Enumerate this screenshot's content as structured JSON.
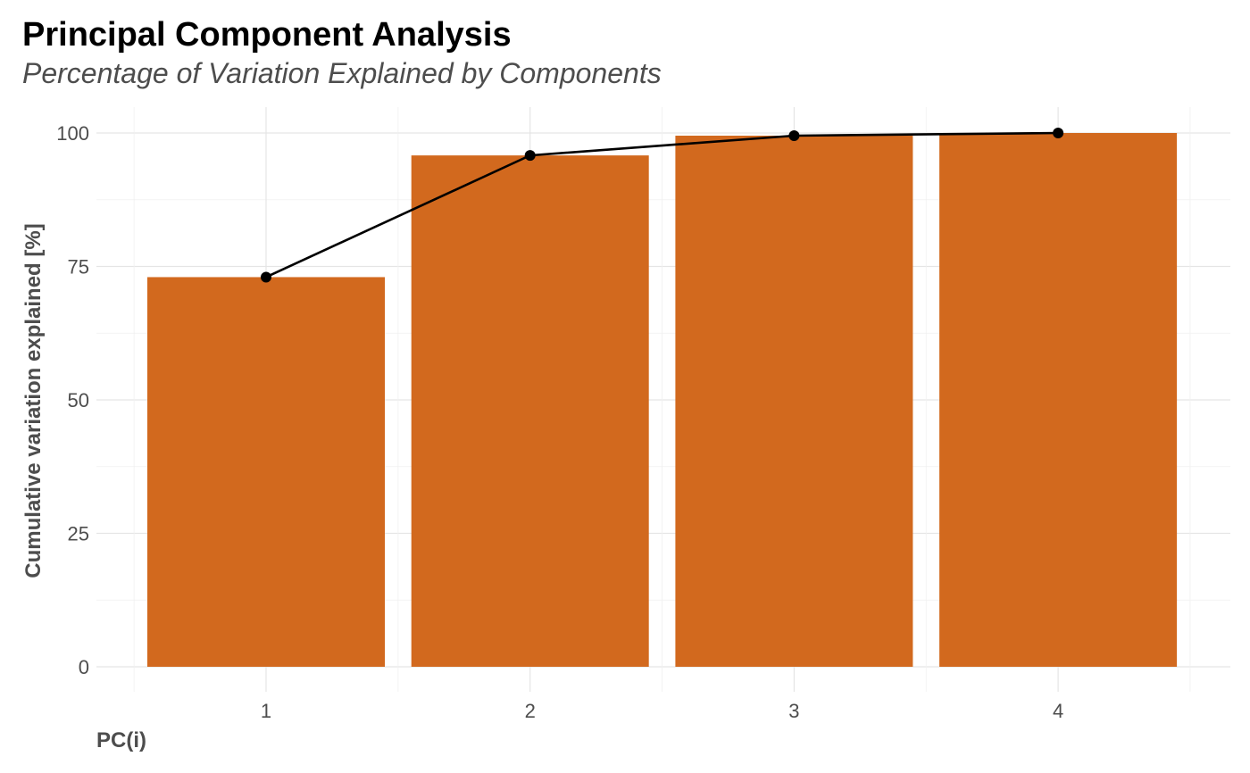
{
  "chart_data": {
    "type": "bar",
    "title": "Principal Component Analysis",
    "subtitle": "Percentage of Variation Explained by Components",
    "xlabel": "PC(i)",
    "ylabel": "Cumulative variation explained [%]",
    "categories": [
      "1",
      "2",
      "3",
      "4"
    ],
    "series": [
      {
        "type": "bar",
        "values": [
          73.0,
          95.8,
          99.5,
          100.0
        ],
        "color": "#D2691E"
      },
      {
        "type": "line",
        "values": [
          73.0,
          95.8,
          99.5,
          100.0
        ],
        "color": "#000000",
        "markers": true
      }
    ],
    "ylim": [
      0,
      100
    ],
    "yticks": [
      "0",
      "25",
      "50",
      "75",
      "100"
    ],
    "grid": true,
    "legend": "none"
  }
}
